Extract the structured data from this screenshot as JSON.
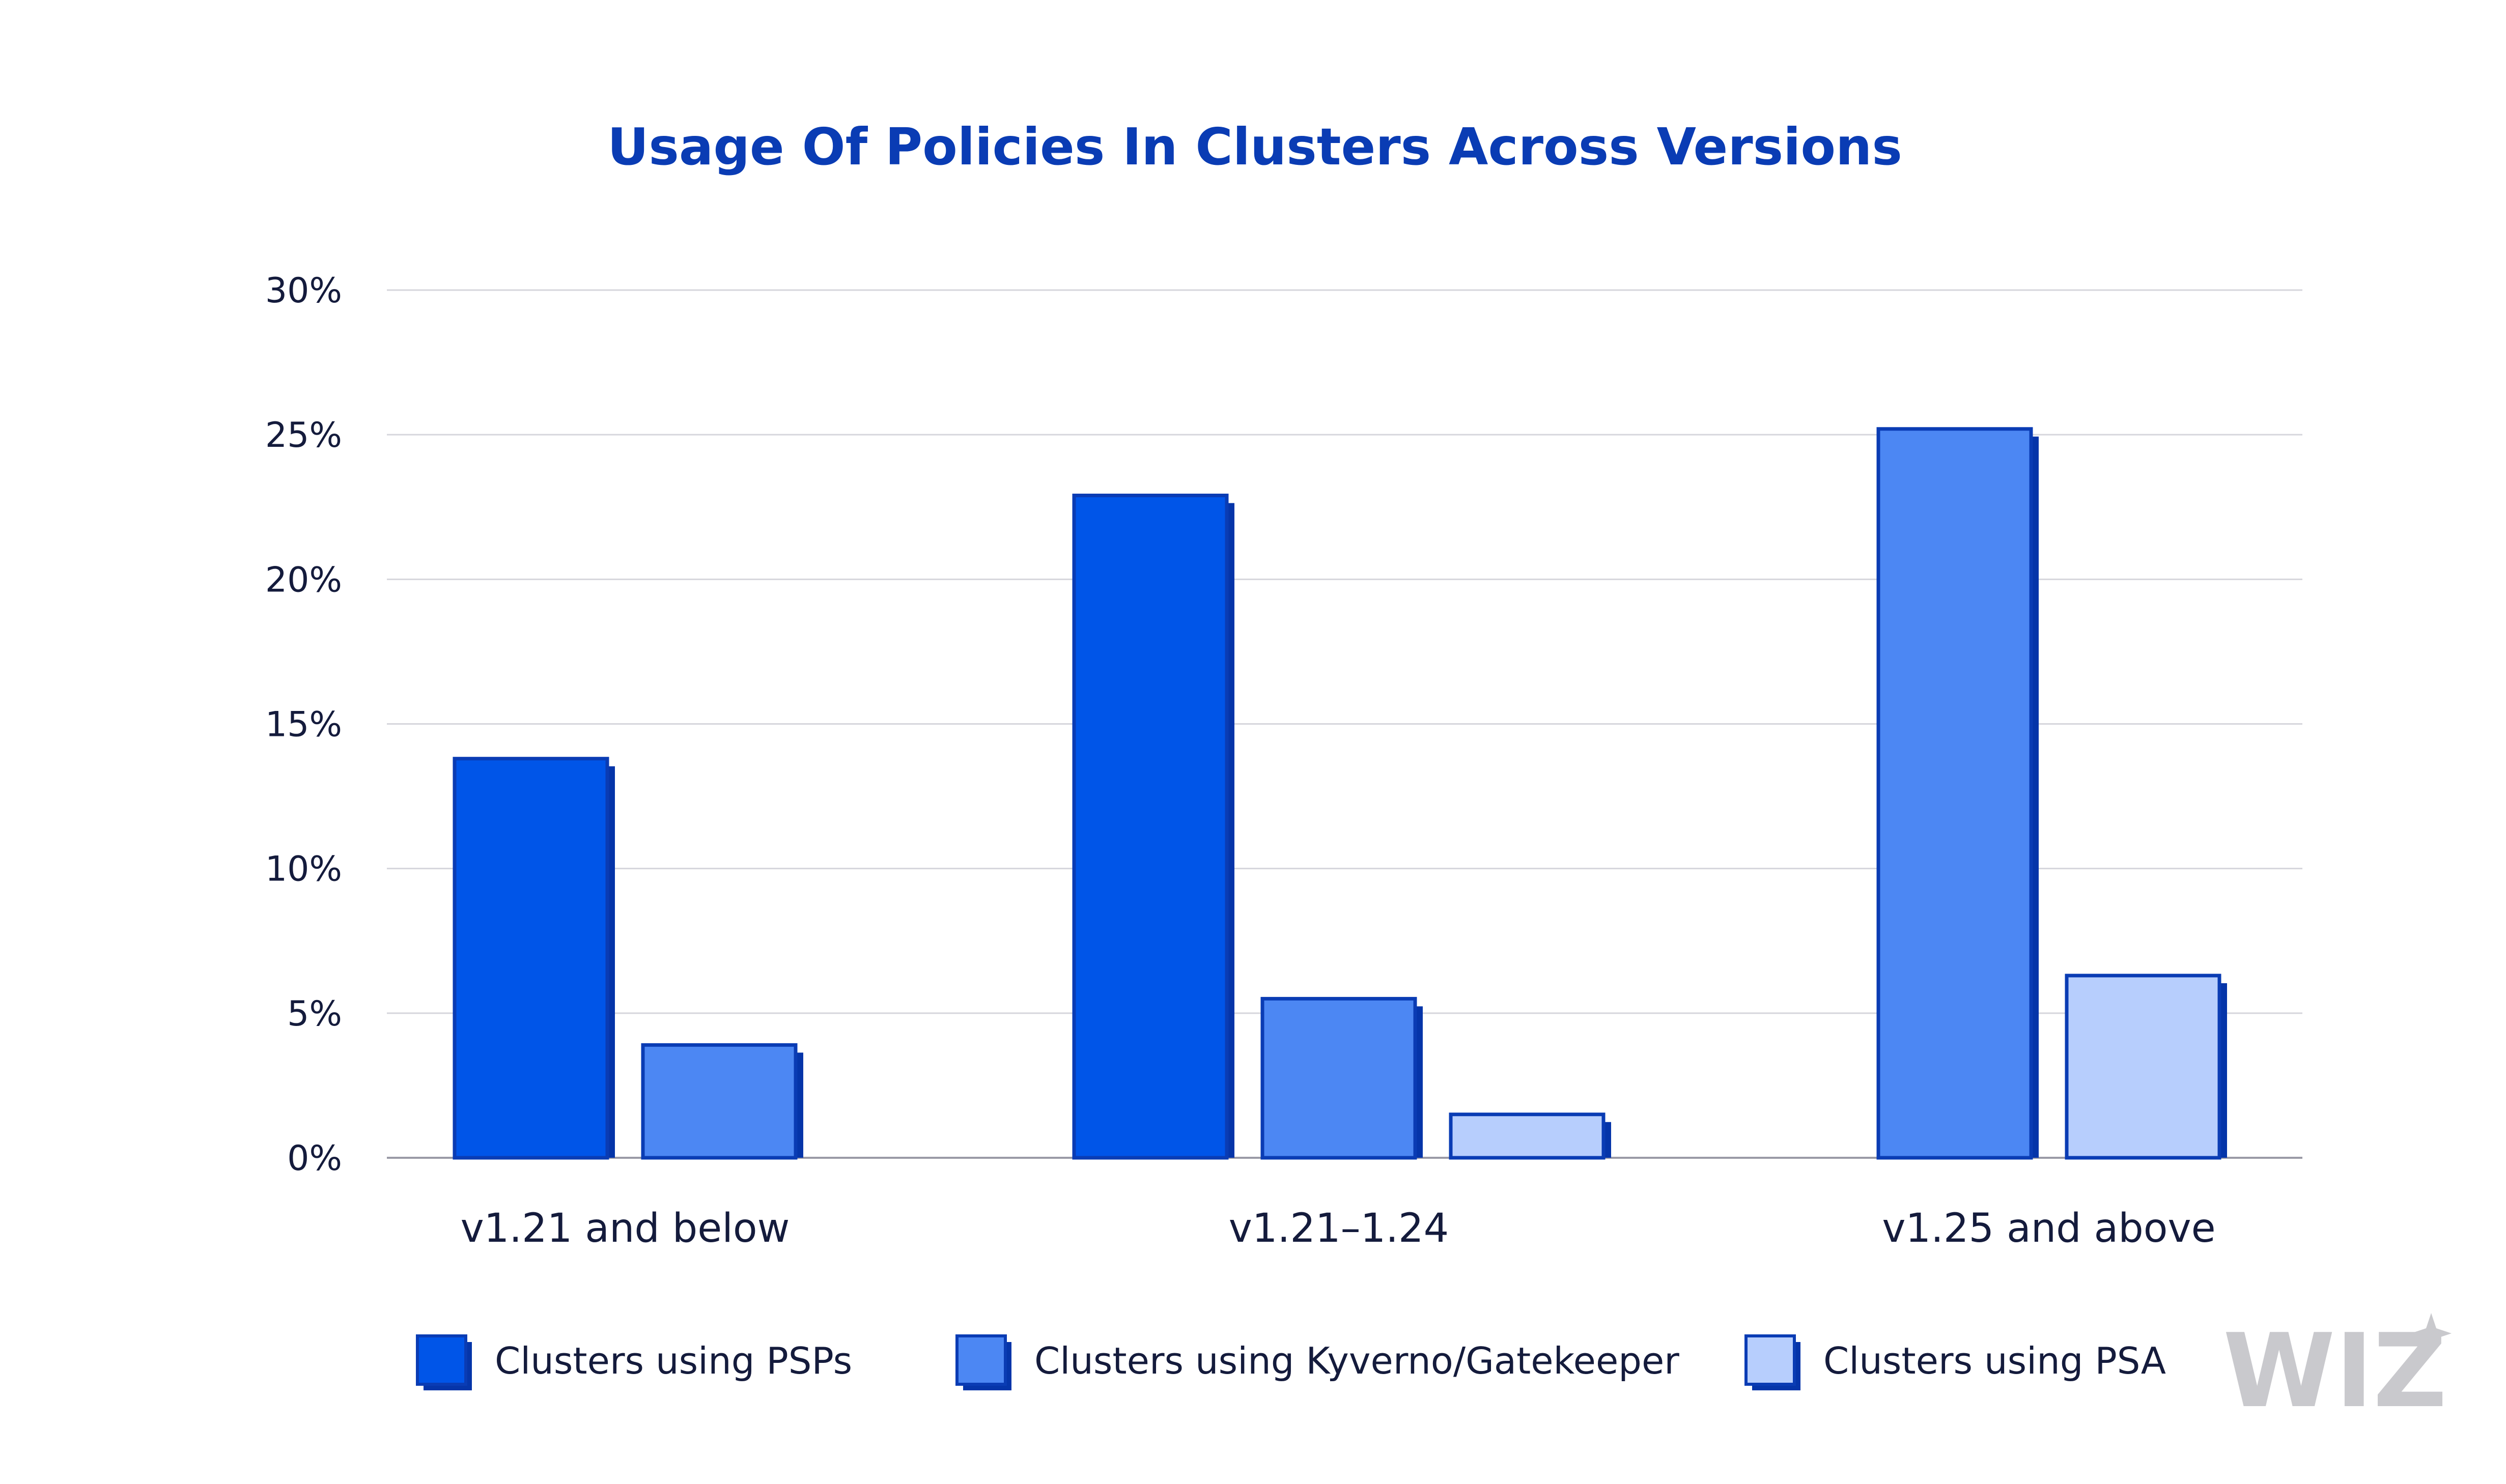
{
  "chart_data": {
    "type": "bar",
    "title": "Usage Of Policies In Clusters Across Versions",
    "xlabel": "",
    "ylabel": "",
    "ylim": [
      0,
      30
    ],
    "y_ticks": [
      "0%",
      "5%",
      "10%",
      "15%",
      "20%",
      "25%",
      "30%"
    ],
    "y_tick_values": [
      0,
      5,
      10,
      15,
      20,
      25,
      30
    ],
    "grid": true,
    "legend_position": "bottom",
    "categories": [
      "v1.21 and below",
      "v1.21–1.24",
      "v1.25 and above"
    ],
    "series": [
      {
        "name": "Clusters using PSPs",
        "color": "#0055e8",
        "values": [
          13.8,
          22.9,
          null
        ]
      },
      {
        "name": "Clusters using Kyverno/Gatekeeper",
        "color": "#4c87f3",
        "values": [
          3.9,
          5.5,
          25.2
        ]
      },
      {
        "name": "Clusters using PSA",
        "color": "#b7cefd",
        "values": [
          null,
          1.5,
          6.3
        ]
      }
    ],
    "outline_color": "#0a3cb4",
    "shadow_color": "#0535a9"
  },
  "logo": {
    "text": "WIZ",
    "color": "#c9c9cd"
  }
}
